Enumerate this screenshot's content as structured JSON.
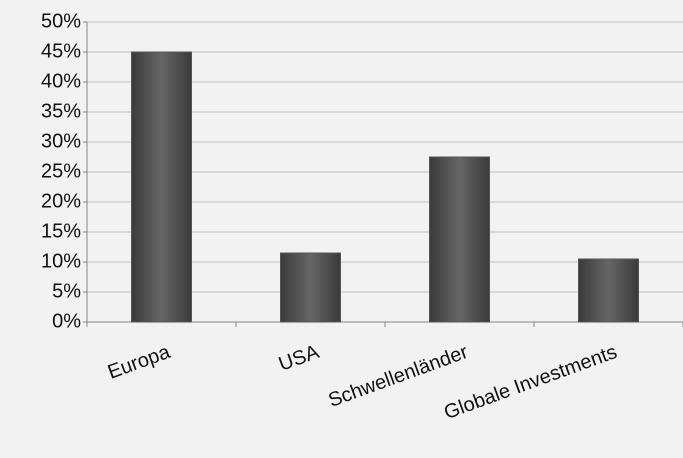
{
  "chart_data": {
    "type": "bar",
    "categories": [
      "Europa",
      "USA",
      "Schwellenländer",
      "Globale Investments"
    ],
    "values": [
      45,
      11.5,
      27.5,
      10.5
    ],
    "color": "#555555",
    "ylim": [
      0,
      50
    ],
    "yticks": [
      {
        "value": 0,
        "label": "0%"
      },
      {
        "value": 5,
        "label": "5%"
      },
      {
        "value": 10,
        "label": "10%"
      },
      {
        "value": 15,
        "label": "15%"
      },
      {
        "value": 20,
        "label": "20%"
      },
      {
        "value": 25,
        "label": "25%"
      },
      {
        "value": 30,
        "label": "30%"
      },
      {
        "value": 35,
        "label": "35%"
      },
      {
        "value": 40,
        "label": "40%"
      },
      {
        "value": 45,
        "label": "45%"
      },
      {
        "value": 50,
        "label": "50%"
      }
    ],
    "grid": true
  }
}
